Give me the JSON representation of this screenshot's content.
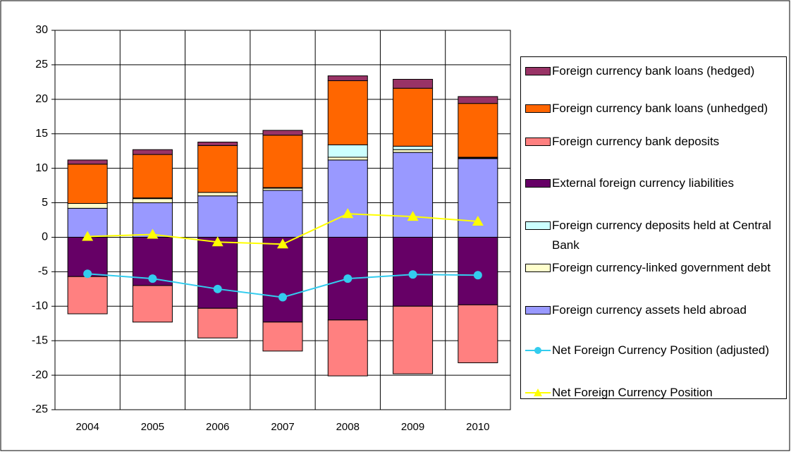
{
  "chart_data": {
    "type": "bar",
    "stacked": true,
    "categories": [
      "2004",
      "2005",
      "2006",
      "2007",
      "2008",
      "2009",
      "2010"
    ],
    "series": [
      {
        "name": "Foreign currency bank loans (hedged)",
        "color": "#993366",
        "values": [
          0.6,
          0.7,
          0.5,
          0.7,
          0.7,
          1.3,
          1.0
        ]
      },
      {
        "name": "Foreign currency bank loans (unhedged)",
        "color": "#ff6600",
        "values": [
          5.7,
          6.3,
          6.8,
          7.6,
          9.3,
          8.4,
          7.8
        ]
      },
      {
        "name": "Foreign currency bank deposits",
        "color": "#ff8080",
        "values": [
          -5.4,
          -5.3,
          -4.3,
          -4.2,
          -8.1,
          -9.8,
          -8.4
        ]
      },
      {
        "name": "External foreign currency liabilities",
        "color": "#660066",
        "values": [
          -5.7,
          -7.0,
          -10.3,
          -12.3,
          -12.0,
          -10.0,
          -9.8
        ]
      },
      {
        "name": "Foreign currency deposits held at Central Bank",
        "color": "#ccffff",
        "values": [
          0,
          0.1,
          0,
          0.1,
          1.8,
          0.5,
          0.1
        ]
      },
      {
        "name": "Foreign currency-linked government debt",
        "color": "#ffffcc",
        "values": [
          0.7,
          0.6,
          0.5,
          0.3,
          0.4,
          0.4,
          0.1
        ]
      },
      {
        "name": "Foreign currency assets held abroad",
        "color": "#9999ff",
        "values": [
          4.2,
          5.0,
          6.0,
          6.8,
          11.2,
          12.3,
          11.4
        ]
      },
      {
        "name": "Net Foreign Currency Position (adjusted)",
        "type": "line",
        "marker": "circle",
        "color": "#33ccee",
        "values": [
          -5.3,
          -6.0,
          -7.5,
          -8.7,
          -6.0,
          -5.4,
          -5.5
        ]
      },
      {
        "name": "Net Foreign Currency Position",
        "type": "line",
        "marker": "triangle",
        "color": "#ffff00",
        "values": [
          0.1,
          0.4,
          -0.7,
          -1.0,
          3.4,
          3.0,
          2.3
        ]
      }
    ],
    "ylim": [
      -25,
      30
    ],
    "yticks": [
      -25,
      -20,
      -15,
      -10,
      -5,
      0,
      5,
      10,
      15,
      20,
      25,
      30
    ],
    "grid": true,
    "legend": "right"
  }
}
